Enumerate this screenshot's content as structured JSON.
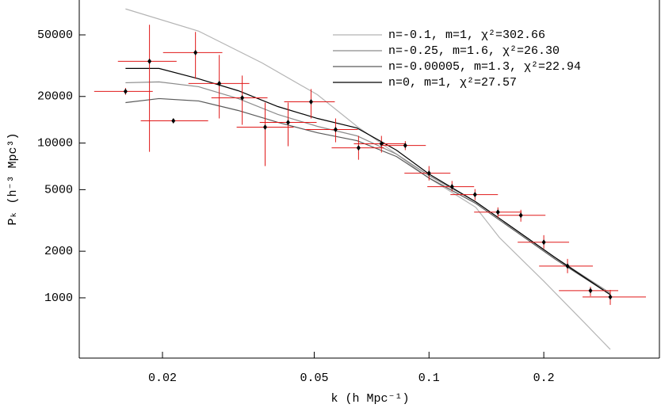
{
  "chart_data": {
    "type": "line",
    "xlabel": "k (h Mpc⁻¹)",
    "ylabel": "Pₖ (h⁻³ Mpc³)",
    "xscale": "log",
    "yscale": "log",
    "xlim": [
      0.0121,
      0.402
    ],
    "ylim": [
      408,
      84000
    ],
    "xticks": [
      0.02,
      0.05,
      0.1,
      0.2
    ],
    "yticks": [
      1000,
      2000,
      5000,
      10000,
      20000,
      50000
    ],
    "series": [
      {
        "name": "n=-0.1, m=1, χ²=302.66",
        "color": "#b4b4b4",
        "x": [
          0.016,
          0.02488,
          0.03648,
          0.05097,
          0.06474,
          0.0822,
          0.1,
          0.1326,
          0.153,
          0.2,
          0.2589,
          0.2988
        ],
        "values": [
          73560,
          52860,
          32960,
          20540,
          12820,
          8480,
          5945,
          3845,
          2450,
          1281,
          669,
          464
        ]
      },
      {
        "name": "n=-0.25, m=1.6, χ²=26.30",
        "color": "#8c8c8c",
        "x": [
          0.016,
          0.01959,
          0.02488,
          0.0316,
          0.04014,
          0.05097,
          0.06474,
          0.0822,
          0.1,
          0.1326,
          0.1684,
          0.2138,
          0.2988
        ],
        "values": [
          24530,
          24830,
          23130,
          19380,
          15300,
          12820,
          11130,
          8480,
          6160,
          4173,
          2761,
          1826,
          1073
        ]
      },
      {
        "name": "n=-0.00005, m=1.3, χ²=22.94",
        "color": "#5a5a5a",
        "x": [
          0.016,
          0.01959,
          0.02488,
          0.0316,
          0.04014,
          0.05097,
          0.06474,
          0.0822,
          0.1,
          0.1326,
          0.1684,
          0.2138,
          0.2988
        ],
        "values": [
          18260,
          19380,
          18700,
          16230,
          13600,
          11660,
          10360,
          8180,
          5945,
          4075,
          2697,
          1783,
          1048
        ]
      },
      {
        "name": "n=0, m=1, χ²=27.57",
        "color": "#000000",
        "x": [
          0.016,
          0.01959,
          0.02488,
          0.0316,
          0.04014,
          0.05097,
          0.06474,
          0.0822,
          0.1,
          0.1326,
          0.1684,
          0.2138,
          0.2988
        ],
        "values": [
          30340,
          30340,
          26020,
          21790,
          17210,
          14420,
          12510,
          8990,
          6310,
          4173,
          2761,
          1826,
          1048
        ]
      }
    ],
    "points": {
      "color": "#000000",
      "error_color": "#e01818",
      "x": [
        0.016,
        0.01849,
        0.02136,
        0.02441,
        0.02818,
        0.03237,
        0.03717,
        0.0427,
        0.04905,
        0.05689,
        0.06534,
        0.07504,
        0.08664,
        0.1,
        0.1149,
        0.132,
        0.1516,
        0.1741,
        0.2,
        0.2308,
        0.2651,
        0.2988
      ],
      "values": [
        21550,
        33750,
        13920,
        38440,
        24250,
        19600,
        12670,
        13600,
        18480,
        12230,
        9315,
        9885,
        9651,
        6385,
        5224,
        4642,
        3580,
        3415,
        2286,
        1603,
        1112,
        1012
      ],
      "xlo": [
        0.01324,
        0.01528,
        0.01754,
        0.02007,
        0.02339,
        0.02687,
        0.0313,
        0.03597,
        0.0417,
        0.04745,
        0.05555,
        0.06351,
        0.07504,
        0.0862,
        0.099,
        0.1138,
        0.1313,
        0.1516,
        0.1708,
        0.1944,
        0.2191,
        0.2527
      ],
      "xhi": [
        0.01886,
        0.02178,
        0.02635,
        0.02871,
        0.03379,
        0.03771,
        0.04416,
        0.05073,
        0.05662,
        0.06505,
        0.07615,
        0.08664,
        0.0981,
        0.1138,
        0.1313,
        0.1516,
        0.175,
        0.202,
        0.233,
        0.269,
        0.3135,
        0.3706
      ],
      "ylo": [
        20500,
        8780,
        13500,
        26020,
        14420,
        13120,
        7100,
        9540,
        14420,
        10120,
        7800,
        8680,
        9000,
        5730,
        4870,
        4270,
        3300,
        3105,
        2080,
        1443,
        1024,
        900
      ],
      "yhi": [
        22700,
        58100,
        14350,
        52240,
        37090,
        27290,
        18260,
        18260,
        22330,
        14420,
        11130,
        11130,
        10300,
        7100,
        5690,
        5040,
        3840,
        3705,
        2540,
        1784,
        1180,
        1125
      ]
    }
  }
}
